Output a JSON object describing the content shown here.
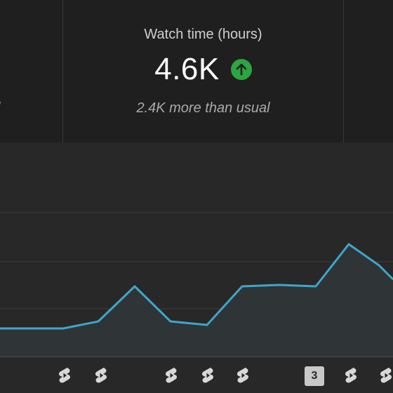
{
  "metric_cards": {
    "left": {
      "subtitle_fragment": "l"
    },
    "watch_time": {
      "title": "Watch time (hours)",
      "value": "4.6K",
      "trend": "up",
      "comparison": "2.4K more than usual"
    }
  },
  "colors": {
    "background": "#282828",
    "card_background": "#1f1f1f",
    "line": "#3ea6c8",
    "area_fill": "#2f3437",
    "grid": "#3c3c3c",
    "trend_up": "#2ba640"
  },
  "chart_data": {
    "type": "area",
    "title": "",
    "xlabel": "",
    "ylabel": "",
    "grid": true,
    "points": [
      4,
      4,
      4,
      5,
      10,
      5,
      4.5,
      10,
      10.2,
      10,
      16,
      13,
      11
    ],
    "ylim": [
      0,
      30
    ],
    "markers": [
      {
        "type": "shorts-icon"
      },
      {
        "type": "shorts-icon"
      },
      {
        "type": "shorts-icon"
      },
      {
        "type": "shorts-icon"
      },
      {
        "type": "shorts-icon"
      },
      {
        "type": "badge",
        "label": "3"
      },
      {
        "type": "shorts-icon"
      },
      {
        "type": "shorts-icon"
      }
    ]
  }
}
